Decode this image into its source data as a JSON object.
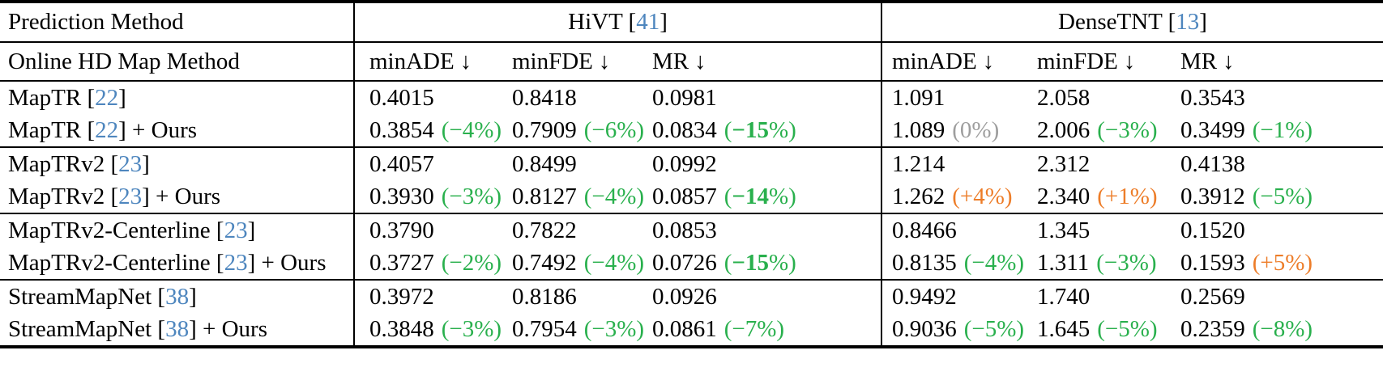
{
  "colors": {
    "green": "#29b04d",
    "orange": "#ed7d29",
    "gray": "#9e9e9e",
    "cite": "#4e86be",
    "text": "#000000",
    "background": "#ffffff"
  },
  "header": {
    "row1_label": "Prediction Method",
    "row2_label": "Online HD Map Method",
    "bracket_open": " [",
    "bracket_close": "]",
    "groups": [
      {
        "name": "HiVT",
        "cite": "41"
      },
      {
        "name": "DenseTNT",
        "cite": "13"
      }
    ],
    "metrics": [
      "minADE",
      "minFDE",
      "MR"
    ],
    "down_arrow": "↓"
  },
  "chart_data": {
    "type": "table",
    "title": "",
    "column_groups": [
      "HiVT [41]",
      "DenseTNT [13]"
    ],
    "columns": [
      "minADE",
      "minFDE",
      "MR",
      "minADE",
      "minFDE",
      "MR"
    ],
    "rows": [
      {
        "method": "MapTR [22]",
        "values": [
          0.4015,
          0.8418,
          0.0981,
          1.091,
          2.058,
          0.3543
        ]
      },
      {
        "method": "MapTR [22] + Ours",
        "values": [
          0.3854,
          0.7909,
          0.0834,
          1.089,
          2.006,
          0.3499
        ],
        "deltas_pct": [
          -4,
          -6,
          -15,
          0,
          -3,
          -1
        ]
      },
      {
        "method": "MapTRv2 [23]",
        "values": [
          0.4057,
          0.8499,
          0.0992,
          1.214,
          2.312,
          0.4138
        ]
      },
      {
        "method": "MapTRv2 [23] + Ours",
        "values": [
          0.393,
          0.8127,
          0.0857,
          1.262,
          2.34,
          0.3912
        ],
        "deltas_pct": [
          -3,
          -4,
          -14,
          4,
          1,
          -5
        ]
      },
      {
        "method": "MapTRv2-Centerline [23]",
        "values": [
          0.379,
          0.7822,
          0.0853,
          0.8466,
          1.345,
          0.152
        ]
      },
      {
        "method": "MapTRv2-Centerline [23] + Ours",
        "values": [
          0.3727,
          0.7492,
          0.0726,
          0.8135,
          1.311,
          0.1593
        ],
        "deltas_pct": [
          -2,
          -4,
          -15,
          -4,
          -3,
          5
        ]
      },
      {
        "method": "StreamMapNet [38]",
        "values": [
          0.3972,
          0.8186,
          0.0926,
          0.9492,
          1.74,
          0.2569
        ]
      },
      {
        "method": "StreamMapNet [38] + Ours",
        "values": [
          0.3848,
          0.7954,
          0.0861,
          0.9036,
          1.645,
          0.2359
        ],
        "deltas_pct": [
          -3,
          -3,
          -7,
          -5,
          -5,
          -8
        ]
      }
    ]
  },
  "body": [
    {
      "rows": [
        {
          "method": {
            "prefix": "MapTR [",
            "cite": "22",
            "suffix": "]"
          },
          "cells": [
            {
              "v": "0.4015"
            },
            {
              "v": "0.8418"
            },
            {
              "v": "0.0981"
            },
            {
              "v": "1.091"
            },
            {
              "v": "2.058"
            },
            {
              "v": "0.3543"
            }
          ]
        },
        {
          "method": {
            "prefix": "MapTR [",
            "cite": "22",
            "suffix": "] + Ours"
          },
          "cells": [
            {
              "v": "0.3854",
              "d": "(−4%)",
              "tone": "green"
            },
            {
              "v": "0.7909",
              "d": "(−6%)",
              "tone": "green"
            },
            {
              "v": "0.0834",
              "d": "(−15%)",
              "tone": "green",
              "bold": true
            },
            {
              "v": "1.089",
              "d": "(0%)",
              "tone": "gray"
            },
            {
              "v": "2.006",
              "d": "(−3%)",
              "tone": "green"
            },
            {
              "v": "0.3499",
              "d": "(−1%)",
              "tone": "green"
            }
          ]
        }
      ]
    },
    {
      "rows": [
        {
          "method": {
            "prefix": "MapTRv2 [",
            "cite": "23",
            "suffix": "]"
          },
          "cells": [
            {
              "v": "0.4057"
            },
            {
              "v": "0.8499"
            },
            {
              "v": "0.0992"
            },
            {
              "v": "1.214"
            },
            {
              "v": "2.312"
            },
            {
              "v": "0.4138"
            }
          ]
        },
        {
          "method": {
            "prefix": "MapTRv2 [",
            "cite": "23",
            "suffix": "] + Ours"
          },
          "cells": [
            {
              "v": "0.3930",
              "d": "(−3%)",
              "tone": "green"
            },
            {
              "v": "0.8127",
              "d": "(−4%)",
              "tone": "green"
            },
            {
              "v": "0.0857",
              "d": "(−14%)",
              "tone": "green",
              "bold": true
            },
            {
              "v": "1.262",
              "d": "(+4%)",
              "tone": "orange"
            },
            {
              "v": "2.340",
              "d": "(+1%)",
              "tone": "orange"
            },
            {
              "v": "0.3912",
              "d": "(−5%)",
              "tone": "green"
            }
          ]
        }
      ]
    },
    {
      "rows": [
        {
          "method": {
            "prefix": "MapTRv2-Centerline [",
            "cite": "23",
            "suffix": "]"
          },
          "cells": [
            {
              "v": "0.3790"
            },
            {
              "v": "0.7822"
            },
            {
              "v": "0.0853"
            },
            {
              "v": "0.8466"
            },
            {
              "v": "1.345"
            },
            {
              "v": "0.1520"
            }
          ]
        },
        {
          "method": {
            "prefix": "MapTRv2-Centerline [",
            "cite": "23",
            "suffix": "] + Ours"
          },
          "cells": [
            {
              "v": "0.3727",
              "d": "(−2%)",
              "tone": "green"
            },
            {
              "v": "0.7492",
              "d": "(−4%)",
              "tone": "green"
            },
            {
              "v": "0.0726",
              "d": "(−15%)",
              "tone": "green",
              "bold": true
            },
            {
              "v": "0.8135",
              "d": "(−4%)",
              "tone": "green"
            },
            {
              "v": "1.311",
              "d": "(−3%)",
              "tone": "green"
            },
            {
              "v": "0.1593",
              "d": "(+5%)",
              "tone": "orange"
            }
          ]
        }
      ]
    },
    {
      "rows": [
        {
          "method": {
            "prefix": "StreamMapNet [",
            "cite": "38",
            "suffix": "]"
          },
          "cells": [
            {
              "v": "0.3972"
            },
            {
              "v": "0.8186"
            },
            {
              "v": "0.0926"
            },
            {
              "v": "0.9492"
            },
            {
              "v": "1.740"
            },
            {
              "v": "0.2569"
            }
          ]
        },
        {
          "method": {
            "prefix": "StreamMapNet [",
            "cite": "38",
            "suffix": "] + Ours"
          },
          "cells": [
            {
              "v": "0.3848",
              "d": "(−3%)",
              "tone": "green"
            },
            {
              "v": "0.7954",
              "d": "(−3%)",
              "tone": "green"
            },
            {
              "v": "0.0861",
              "d": "(−7%)",
              "tone": "green"
            },
            {
              "v": "0.9036",
              "d": "(−5%)",
              "tone": "green"
            },
            {
              "v": "1.645",
              "d": "(−5%)",
              "tone": "green"
            },
            {
              "v": "0.2359",
              "d": "(−8%)",
              "tone": "green"
            }
          ]
        }
      ]
    }
  ]
}
